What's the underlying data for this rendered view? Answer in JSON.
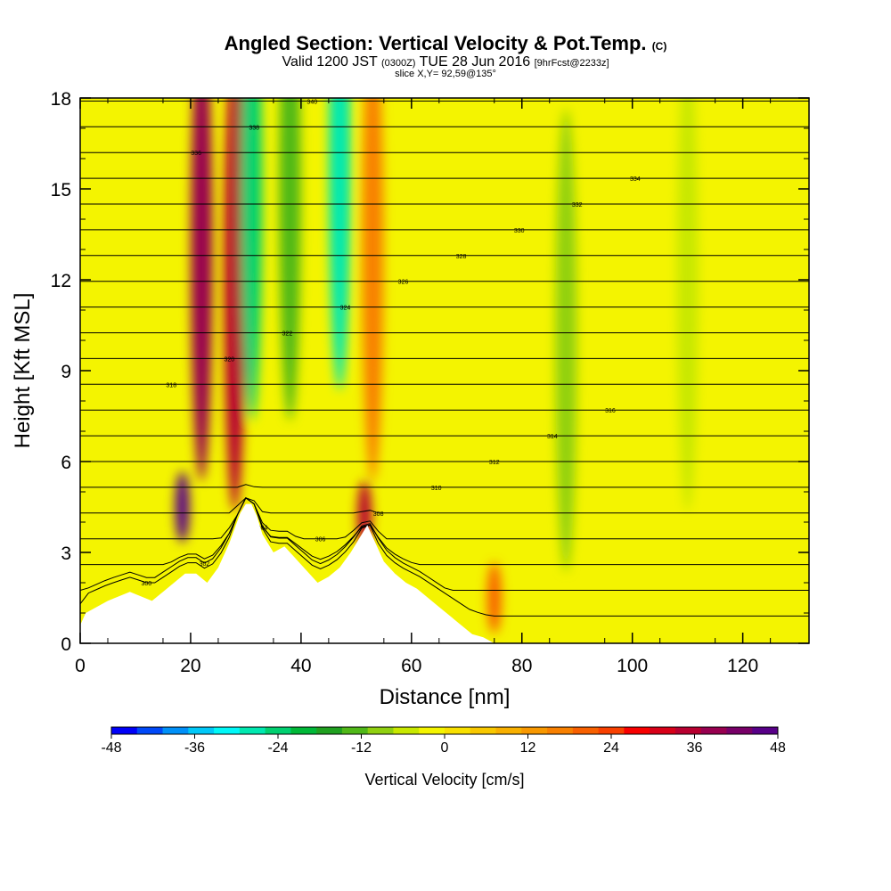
{
  "header": {
    "title": "Angled Section: Vertical Velocity & Pot.Temp.",
    "title_unit": "(C)",
    "valid_prefix": "Valid 1200 JST",
    "valid_z": "(0300Z)",
    "valid_date": "TUE 28 Jun 2016",
    "fcst": "[9hrFcst@2233z]",
    "slice": "slice X,Y= 92,59@135°"
  },
  "chart_data": {
    "type": "heatmap",
    "xlabel": "Distance [nm]",
    "ylabel": "Height [Kft MSL]",
    "xlim": [
      0,
      132
    ],
    "ylim": [
      0,
      18
    ],
    "x_ticks": [
      0,
      20,
      40,
      60,
      80,
      100,
      120
    ],
    "y_ticks": [
      0,
      3,
      6,
      9,
      12,
      15,
      18
    ],
    "background_value_color": "#f4f400",
    "velocity_field": [
      {
        "x": 22,
        "z": 13,
        "w": 38
      },
      {
        "x": 28,
        "z": 12,
        "w": 34
      },
      {
        "x": 31,
        "z": 15,
        "w": -24
      },
      {
        "x": 38,
        "z": 15,
        "w": -14
      },
      {
        "x": 47,
        "z": 16,
        "w": -26
      },
      {
        "x": 53,
        "z": 13,
        "w": 16
      },
      {
        "x": 18.5,
        "z": 4.5,
        "w": 46
      },
      {
        "x": 51.5,
        "z": 4.2,
        "w": 36
      },
      {
        "x": 75,
        "z": 1.5,
        "w": 20
      },
      {
        "x": 88,
        "z": 10,
        "w": -8
      },
      {
        "x": 110,
        "z": 12,
        "w": -6
      }
    ],
    "terrain_profile": {
      "x": [
        0,
        1,
        5,
        9,
        13,
        15,
        17,
        19,
        21,
        23,
        25,
        27,
        28,
        29,
        30,
        31,
        32,
        33,
        35,
        37,
        39,
        41,
        43,
        45,
        47,
        49,
        51,
        52,
        53,
        55,
        57,
        59,
        61,
        63,
        65,
        67,
        69,
        71,
        73,
        75
      ],
      "z": [
        0.6,
        1.0,
        1.4,
        1.7,
        1.4,
        1.7,
        2.0,
        2.3,
        2.3,
        2.0,
        2.5,
        3.3,
        3.8,
        4.3,
        4.6,
        4.6,
        4.2,
        3.6,
        3.0,
        3.2,
        2.8,
        2.4,
        2.0,
        2.2,
        2.5,
        3.0,
        3.6,
        3.9,
        3.5,
        2.7,
        2.3,
        2.0,
        1.8,
        1.5,
        1.2,
        0.9,
        0.6,
        0.3,
        0.2,
        0
      ]
    },
    "isentrope_labels": [
      "300",
      "302",
      "304",
      "306",
      "308",
      "310",
      "312",
      "314",
      "316",
      "318",
      "320",
      "322",
      "324",
      "326",
      "328",
      "330",
      "332",
      "334",
      "336",
      "338",
      "340"
    ],
    "colorbar": {
      "label": "Vertical Velocity [cm/s]",
      "min": -48,
      "max": 48,
      "ticks": [
        -48,
        -36,
        -24,
        -12,
        0,
        12,
        24,
        36,
        48
      ],
      "colors": [
        "#0000f8",
        "#0048f8",
        "#0090f8",
        "#00c8f8",
        "#00f8f8",
        "#00e8b0",
        "#00d070",
        "#00b838",
        "#20a020",
        "#50b818",
        "#90d010",
        "#c8e800",
        "#f4f400",
        "#f8e000",
        "#f8c800",
        "#f8b000",
        "#f89800",
        "#f88000",
        "#f86000",
        "#f84000",
        "#f80000",
        "#d80018",
        "#b80030",
        "#980050",
        "#780068",
        "#580088"
      ]
    }
  }
}
